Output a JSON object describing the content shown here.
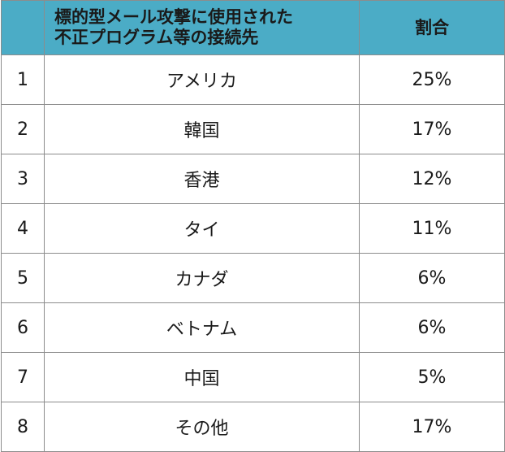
{
  "table": {
    "headers": {
      "rank": "",
      "destination_line1": "標的型メール攻撃に使用された",
      "destination_line2": "不正プログラム等の接続先",
      "share": "割合"
    },
    "rows": [
      {
        "rank": "1",
        "destination": "アメリカ",
        "share": "25%"
      },
      {
        "rank": "2",
        "destination": "韓国",
        "share": "17%"
      },
      {
        "rank": "3",
        "destination": "香港",
        "share": "12%"
      },
      {
        "rank": "4",
        "destination": "タイ",
        "share": "11%"
      },
      {
        "rank": "5",
        "destination": "カナダ",
        "share": "6%"
      },
      {
        "rank": "6",
        "destination": "ベトナム",
        "share": "6%"
      },
      {
        "rank": "7",
        "destination": "中国",
        "share": "5%"
      },
      {
        "rank": "8",
        "destination": "その他",
        "share": "17%"
      }
    ]
  },
  "colors": {
    "header_background": "#4bacc6",
    "border": "#8c8c8c",
    "text": "#1a1a1a"
  }
}
